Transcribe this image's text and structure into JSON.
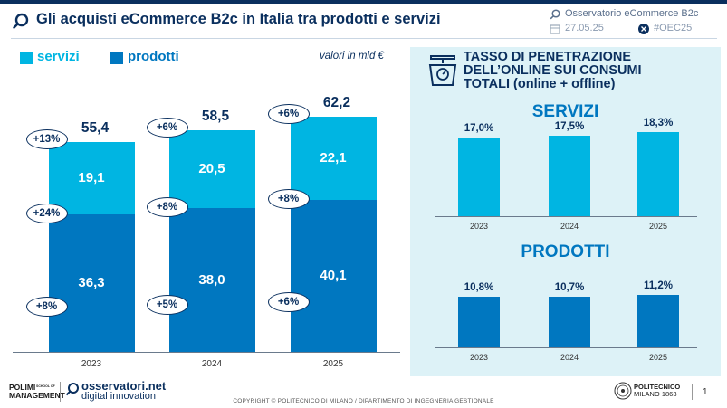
{
  "header": {
    "title": "Gli acquisti eCommerce B2c in Italia tra prodotti e servizi",
    "org": "Osservatorio eCommerce B2c",
    "date": "27.05.25",
    "hashtag": "#OEC25"
  },
  "colors": {
    "servizi": "#00b5e2",
    "prodotti": "#0077c0",
    "navy": "#0a2f5e",
    "panel": "#ddf2f7"
  },
  "legend": {
    "servizi": "servizi",
    "prodotti": "prodotti"
  },
  "unit_note": "valori in mld €",
  "chart_data": [
    {
      "type": "bar",
      "stacked": true,
      "categories": [
        "2023",
        "2024",
        "2025"
      ],
      "series": [
        {
          "name": "prodotti",
          "values": [
            36.3,
            38.0,
            40.1
          ],
          "labels": [
            "36,3",
            "38,0",
            "40,1"
          ],
          "growth": [
            "+8%",
            "+5%",
            "+6%"
          ]
        },
        {
          "name": "servizi",
          "values": [
            19.1,
            20.5,
            22.1
          ],
          "labels": [
            "19,1",
            "20,5",
            "22,1"
          ],
          "growth": [
            "+24%",
            "+8%",
            "+8%"
          ]
        }
      ],
      "totals": [
        55.4,
        58.5,
        62.2
      ],
      "total_labels": [
        "55,4",
        "58,5",
        "62,2"
      ],
      "total_growth": [
        "+13%",
        "+6%",
        "+6%"
      ],
      "ylim": [
        0,
        70
      ],
      "grid": false,
      "legend_position": "top-left"
    },
    {
      "type": "bar",
      "title": "SERVIZI",
      "categories": [
        "2023",
        "2024",
        "2025"
      ],
      "values": [
        17.0,
        17.5,
        18.3
      ],
      "labels": [
        "17,0%",
        "17,5%",
        "18,3%"
      ],
      "ylim": [
        0,
        20
      ]
    },
    {
      "type": "bar",
      "title": "PRODOTTI",
      "categories": [
        "2023",
        "2024",
        "2025"
      ],
      "values": [
        10.8,
        10.7,
        11.2
      ],
      "labels": [
        "10,8%",
        "10,7%",
        "11,2%"
      ],
      "ylim": [
        0,
        20
      ]
    }
  ],
  "panel": {
    "title_line1": "TASSO DI PENETRAZIONE",
    "title_line2": "DELL’ONLINE SUI CONSUMI",
    "title_line3": "TOTALI (online + offline)",
    "icon": "scale-icon"
  },
  "footer": {
    "copyright": "COPYRIGHT © POLITECNICO DI MILANO / DIPARTIMENTO DI INGEGNERIA GESTIONALE",
    "polimi_line1": "POLIMI",
    "polimi_line2": "MANAGEMENT",
    "polimi_small": "SCHOOL OF",
    "osserv_line1": "osservatori.net",
    "osserv_line2": "digital innovation",
    "polito_line1": "POLITECNICO",
    "polito_line2": "MILANO 1863",
    "page": "1"
  }
}
